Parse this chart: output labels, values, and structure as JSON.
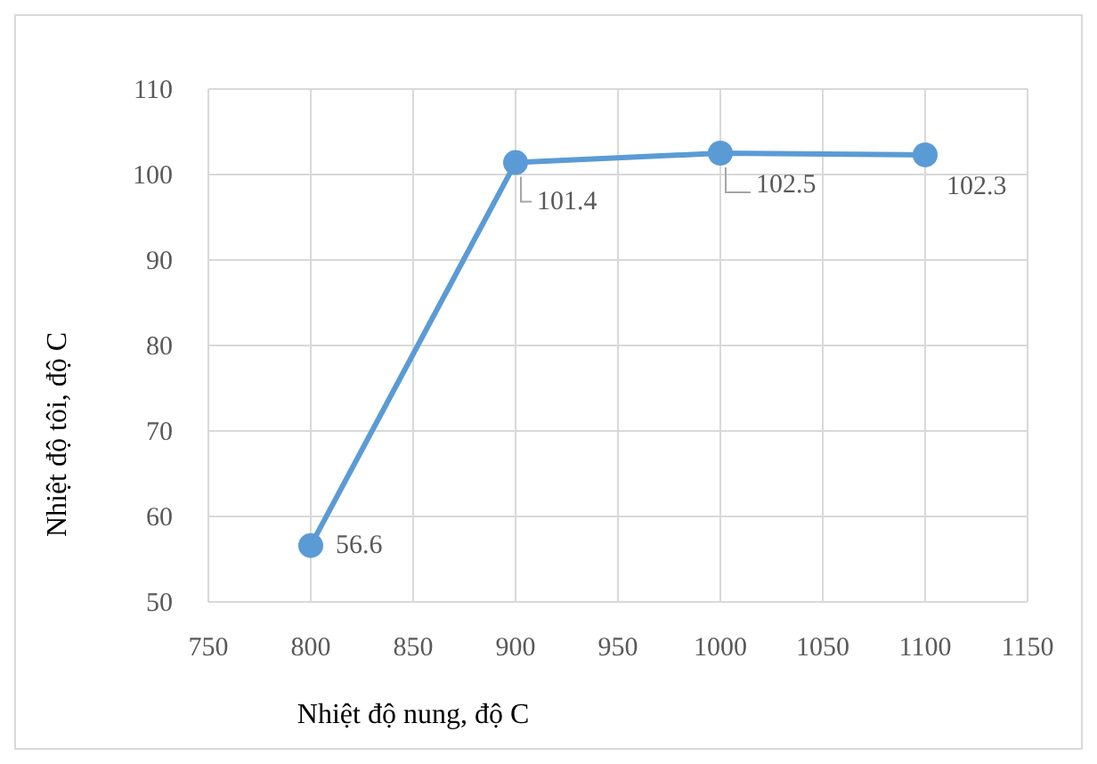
{
  "chart_data": {
    "type": "line",
    "xlabel": "Nhiệt độ nung, độ C",
    "ylabel": "Nhiệt độ tôi, độ C",
    "x": [
      800,
      900,
      1000,
      1100
    ],
    "series": [
      {
        "color": "#5b9bd5",
        "values": [
          56.6,
          101.4,
          102.5,
          102.3
        ]
      }
    ],
    "xlim": [
      750,
      1150
    ],
    "xticks": [
      750,
      800,
      850,
      900,
      950,
      1000,
      1050,
      1100,
      1150
    ],
    "ylim": [
      50,
      110
    ],
    "yticks": [
      50,
      60,
      70,
      80,
      90,
      100,
      110
    ],
    "grid": true,
    "marker": "circle",
    "line_style": "solid",
    "data_labels": true
  }
}
